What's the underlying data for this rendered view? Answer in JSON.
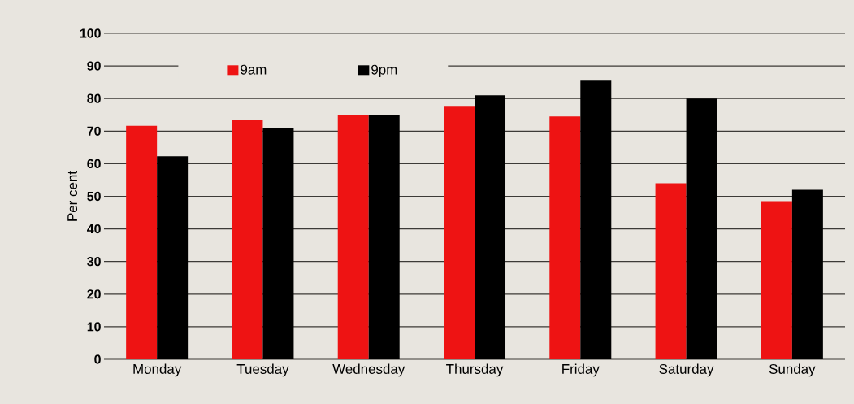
{
  "chart_data": {
    "type": "bar",
    "ylabel": "Per cent",
    "categories": [
      "Monday",
      "Tuesday",
      "Wednesday",
      "Thursday",
      "Friday",
      "Saturday",
      "Sunday"
    ],
    "series": [
      {
        "name": "9am",
        "color": "#ee1313",
        "values": [
          71.6,
          73.3,
          75,
          77.5,
          74.5,
          54,
          48.5
        ]
      },
      {
        "name": "9pm",
        "color": "#000000",
        "values": [
          62.3,
          71,
          75,
          81,
          85.5,
          80,
          52
        ]
      }
    ],
    "ylim": [
      0,
      100
    ],
    "yticks": [
      0,
      10,
      20,
      30,
      40,
      50,
      60,
      70,
      80,
      90,
      100
    ],
    "grid": "y",
    "legend": "top left"
  }
}
